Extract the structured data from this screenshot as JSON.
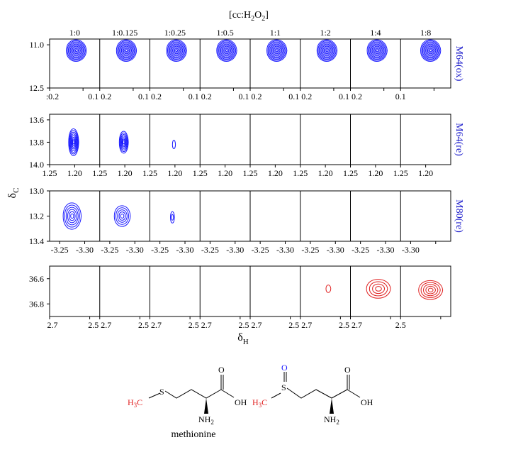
{
  "chart_data": {
    "type": "contour",
    "figure_header": "[cc:H",
    "figure_header_sub2": "2",
    "figure_header_O": "O",
    "figure_header_sub2b": "2",
    "figure_header_end": "]",
    "ratios": [
      "1:0",
      "1:0.125",
      "1:0.25",
      "1:0.5",
      "1:1",
      "1:2",
      "1:4",
      "1:8"
    ],
    "y_axis_label": "δ",
    "y_axis_label_sub": "C",
    "x_axis_label": "δ",
    "x_axis_label_sub": "H",
    "panels": [
      {
        "name": "M64(ox)",
        "color": "#1a1aff",
        "xlim": [
          0.2,
          0.05
        ],
        "ylim": [
          10.8,
          12.5
        ],
        "xticks": [
          0.2,
          0.1
        ],
        "x_tick_labels": [
          ":0.2",
          "0.1 0.2",
          "0.1 0.2",
          "0.1 0.2",
          "0.1 0.2",
          "0.1 0.2",
          "0.1 0.2",
          "0.1"
        ],
        "y_tick_labels": [
          "11.0",
          "12.5"
        ],
        "yticks": [
          11.0,
          12.5
        ],
        "peaks": [
          {
            "ratio": "1:0",
            "x": 0.12,
            "y": 11.2,
            "levels": 10,
            "rx": 0.03,
            "ry": 0.5
          },
          {
            "ratio": "1:0.125",
            "x": 0.12,
            "y": 11.2,
            "levels": 10,
            "rx": 0.03,
            "ry": 0.5
          },
          {
            "ratio": "1:0.25",
            "x": 0.12,
            "y": 11.2,
            "levels": 10,
            "rx": 0.03,
            "ry": 0.5
          },
          {
            "ratio": "1:0.5",
            "x": 0.12,
            "y": 11.2,
            "levels": 10,
            "rx": 0.03,
            "ry": 0.5
          },
          {
            "ratio": "1:1",
            "x": 0.12,
            "y": 11.2,
            "levels": 10,
            "rx": 0.03,
            "ry": 0.5
          },
          {
            "ratio": "1:2",
            "x": 0.12,
            "y": 11.2,
            "levels": 10,
            "rx": 0.03,
            "ry": 0.5
          },
          {
            "ratio": "1:4",
            "x": 0.12,
            "y": 11.2,
            "levels": 10,
            "rx": 0.03,
            "ry": 0.5
          },
          {
            "ratio": "1:8",
            "x": 0.11,
            "y": 11.2,
            "levels": 10,
            "rx": 0.03,
            "ry": 0.5
          }
        ]
      },
      {
        "name": "M64(re)",
        "color": "#1a1aff",
        "xlim": [
          1.25,
          1.15
        ],
        "ylim": [
          13.55,
          14.0
        ],
        "xticks": [
          1.25,
          1.2
        ],
        "x_tick_labels": [
          "1.25",
          "1.20",
          "1.25",
          "1.20",
          "1.25",
          "1.20",
          "1.25",
          "1.20",
          "1.25",
          "1.20",
          "1.25",
          "1.20",
          "1.25",
          "1.20",
          "1.25",
          "1.20"
        ],
        "y_tick_labels": [
          "13.6",
          "13.8",
          "14.0"
        ],
        "yticks": [
          13.6,
          13.8,
          14.0
        ],
        "peaks": [
          {
            "ratio": "1:0",
            "x": 1.202,
            "y": 13.8,
            "levels": 8,
            "rx": 0.01,
            "ry": 0.16
          },
          {
            "ratio": "1:0.125",
            "x": 1.202,
            "y": 13.8,
            "levels": 7,
            "rx": 0.009,
            "ry": 0.13
          },
          {
            "ratio": "1:0.25",
            "x": 1.202,
            "y": 13.82,
            "levels": 1,
            "rx": 0.003,
            "ry": 0.05
          }
        ]
      },
      {
        "name": "M80(re)",
        "color": "#1a1aff",
        "xlim": [
          -3.23,
          -3.33
        ],
        "ylim": [
          13.0,
          13.4
        ],
        "xticks": [
          -3.25,
          -3.3
        ],
        "x_tick_labels": [
          "-3.25",
          "-3.30",
          "-3.25",
          "-3.30",
          "-3.25",
          "-3.30",
          "-3.25",
          "-3.30",
          "-3.25",
          "-3.30",
          "-3.25",
          "-3.30",
          "-3.25",
          "-3.30",
          "-3.30"
        ],
        "y_tick_labels": [
          "13.0",
          "13.2",
          "13.4"
        ],
        "yticks": [
          13.0,
          13.2,
          13.4
        ],
        "peaks": [
          {
            "ratio": "1:0",
            "x": -3.275,
            "y": 13.2,
            "levels": 6,
            "rx": 0.018,
            "ry": 0.14
          },
          {
            "ratio": "1:0.125",
            "x": -3.275,
            "y": 13.2,
            "levels": 5,
            "rx": 0.016,
            "ry": 0.11
          },
          {
            "ratio": "1:0.25",
            "x": -3.275,
            "y": 13.21,
            "levels": 2,
            "rx": 0.004,
            "ry": 0.06
          }
        ]
      },
      {
        "name": "",
        "color": "#e02020",
        "xlim": [
          2.7,
          2.45
        ],
        "ylim": [
          36.5,
          36.9
        ],
        "xticks": [
          2.7,
          2.5
        ],
        "x_tick_labels": [
          "2.7",
          "2.5 2.7",
          "2.5 2.7",
          "2.5 2.7",
          "2.5 2.7",
          "2.5 2.7",
          "2.5 2.7",
          "2.5"
        ],
        "y_tick_labels": [
          "36.6",
          "36.8"
        ],
        "yticks": [
          36.6,
          36.8
        ],
        "peaks": [
          {
            "ratio": "1:2",
            "x": 2.56,
            "y": 36.68,
            "levels": 1,
            "rx": 0.012,
            "ry": 0.04
          },
          {
            "ratio": "1:4",
            "x": 2.56,
            "y": 36.68,
            "levels": 4,
            "rx": 0.06,
            "ry": 0.1
          },
          {
            "ratio": "1:8",
            "x": 2.55,
            "y": 36.69,
            "levels": 5,
            "rx": 0.06,
            "ry": 0.1
          }
        ]
      }
    ]
  },
  "structures": {
    "left": {
      "h3c": "H",
      "h3c_sub": "3",
      "h3c_c": "C",
      "s": "S",
      "oh": "OH",
      "o": "O",
      "nh2": "NH",
      "nh2_sub": "2",
      "name": "methionine"
    },
    "right": {
      "h3c": "H",
      "h3c_sub": "3",
      "h3c_c": "C",
      "s": "S",
      "o_s": "O",
      "oh": "OH",
      "o": "O",
      "nh2": "NH",
      "nh2_sub": "2"
    }
  }
}
